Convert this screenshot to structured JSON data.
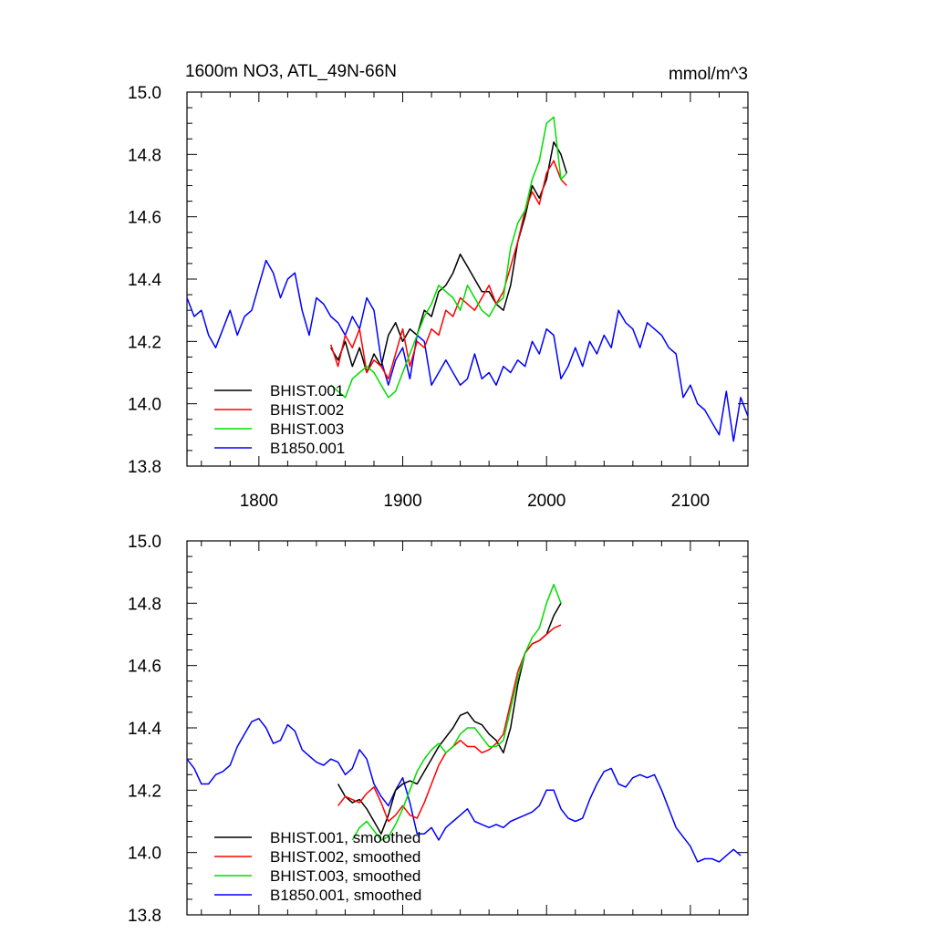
{
  "title": "1600m NO3, ATL_49N-66N",
  "units": "mmol/m^3",
  "chart_data": [
    {
      "type": "line",
      "panel": "top",
      "xlim": [
        1750,
        2140
      ],
      "ylim": [
        13.8,
        15.0
      ],
      "x_ticks": [
        1800,
        1900,
        2000,
        2100
      ],
      "y_ticks": [
        13.8,
        14.0,
        14.2,
        14.4,
        14.6,
        14.8,
        15.0
      ],
      "x_tick_labels": [
        "1800",
        "1900",
        "2000",
        "2100"
      ],
      "y_tick_labels": [
        "13.8",
        "14.0",
        "14.2",
        "14.4",
        "14.6",
        "14.8",
        "15.0"
      ],
      "grid": false,
      "legend_position": "bottom-left",
      "series": [
        {
          "name": "BHIST.001",
          "color": "#000000",
          "x": [
            1850,
            1855,
            1860,
            1865,
            1870,
            1875,
            1880,
            1885,
            1890,
            1895,
            1900,
            1905,
            1910,
            1915,
            1920,
            1925,
            1930,
            1935,
            1940,
            1945,
            1950,
            1955,
            1960,
            1965,
            1970,
            1975,
            1980,
            1985,
            1990,
            1995,
            2000,
            2005,
            2010,
            2014
          ],
          "y": [
            14.18,
            14.14,
            14.2,
            14.12,
            14.18,
            14.1,
            14.16,
            14.12,
            14.22,
            14.26,
            14.2,
            14.24,
            14.22,
            14.3,
            14.28,
            14.36,
            14.38,
            14.42,
            14.48,
            14.44,
            14.4,
            14.36,
            14.36,
            14.32,
            14.3,
            14.38,
            14.52,
            14.6,
            14.7,
            14.66,
            14.72,
            14.84,
            14.8,
            14.74
          ]
        },
        {
          "name": "BHIST.002",
          "color": "#ff0000",
          "x": [
            1850,
            1855,
            1860,
            1865,
            1870,
            1875,
            1880,
            1885,
            1890,
            1895,
            1900,
            1905,
            1910,
            1915,
            1920,
            1925,
            1930,
            1935,
            1940,
            1945,
            1950,
            1955,
            1960,
            1965,
            1970,
            1975,
            1980,
            1985,
            1990,
            1995,
            2000,
            2005,
            2010,
            2014
          ],
          "y": [
            14.19,
            14.12,
            14.22,
            14.18,
            14.24,
            14.1,
            14.14,
            14.12,
            14.08,
            14.16,
            14.24,
            14.12,
            14.2,
            14.18,
            14.24,
            14.22,
            14.3,
            14.28,
            14.34,
            14.32,
            14.3,
            14.34,
            14.38,
            14.32,
            14.36,
            14.44,
            14.52,
            14.62,
            14.68,
            14.64,
            14.74,
            14.78,
            14.72,
            14.7
          ]
        },
        {
          "name": "BHIST.003",
          "color": "#00dd00",
          "x": [
            1850,
            1855,
            1860,
            1865,
            1870,
            1875,
            1880,
            1885,
            1890,
            1895,
            1900,
            1905,
            1910,
            1915,
            1920,
            1925,
            1930,
            1935,
            1940,
            1945,
            1950,
            1955,
            1960,
            1965,
            1970,
            1975,
            1980,
            1985,
            1990,
            1995,
            2000,
            2005,
            2010,
            2014
          ],
          "y": [
            14.06,
            14.04,
            14.02,
            14.08,
            14.1,
            14.12,
            14.1,
            14.06,
            14.02,
            14.04,
            14.1,
            14.16,
            14.22,
            14.28,
            14.32,
            14.38,
            14.36,
            14.34,
            14.3,
            14.38,
            14.34,
            14.3,
            14.28,
            14.32,
            14.34,
            14.5,
            14.58,
            14.62,
            14.72,
            14.78,
            14.9,
            14.92,
            14.72,
            14.74
          ]
        },
        {
          "name": "B1850.001",
          "color": "#0000ff",
          "x": [
            1750,
            1755,
            1760,
            1765,
            1770,
            1775,
            1780,
            1785,
            1790,
            1795,
            1800,
            1805,
            1810,
            1815,
            1820,
            1825,
            1830,
            1835,
            1840,
            1845,
            1850,
            1855,
            1860,
            1865,
            1870,
            1875,
            1880,
            1885,
            1890,
            1895,
            1900,
            1905,
            1910,
            1915,
            1920,
            1925,
            1930,
            1935,
            1940,
            1945,
            1950,
            1955,
            1960,
            1965,
            1970,
            1975,
            1980,
            1985,
            1990,
            1995,
            2000,
            2005,
            2010,
            2015,
            2020,
            2025,
            2030,
            2035,
            2040,
            2045,
            2050,
            2055,
            2060,
            2065,
            2070,
            2075,
            2080,
            2085,
            2090,
            2095,
            2100,
            2105,
            2110,
            2115,
            2120,
            2125,
            2130,
            2135,
            2140
          ],
          "y": [
            14.34,
            14.28,
            14.3,
            14.22,
            14.18,
            14.24,
            14.3,
            14.22,
            14.28,
            14.3,
            14.38,
            14.46,
            14.42,
            14.34,
            14.4,
            14.42,
            14.3,
            14.22,
            14.34,
            14.32,
            14.28,
            14.26,
            14.22,
            14.28,
            14.24,
            14.34,
            14.3,
            14.14,
            14.06,
            14.14,
            14.18,
            14.08,
            14.22,
            14.2,
            14.06,
            14.1,
            14.14,
            14.1,
            14.06,
            14.08,
            14.16,
            14.08,
            14.1,
            14.06,
            14.12,
            14.1,
            14.14,
            14.12,
            14.2,
            14.16,
            14.24,
            14.22,
            14.08,
            14.12,
            14.18,
            14.12,
            14.2,
            14.16,
            14.22,
            14.18,
            14.3,
            14.26,
            14.24,
            14.18,
            14.26,
            14.24,
            14.22,
            14.18,
            14.16,
            14.02,
            14.06,
            14.0,
            13.98,
            13.94,
            13.9,
            14.04,
            13.88,
            14.02,
            13.96
          ]
        }
      ]
    },
    {
      "type": "line",
      "panel": "bottom",
      "xlim": [
        1750,
        2140
      ],
      "ylim": [
        13.8,
        15.0
      ],
      "x_ticks": [
        1800,
        1900,
        2000,
        2100
      ],
      "y_ticks": [
        13.8,
        14.0,
        14.2,
        14.4,
        14.6,
        14.8,
        15.0
      ],
      "y_tick_labels": [
        "13.8",
        "14.0",
        "14.2",
        "14.4",
        "14.6",
        "14.8",
        "15.0"
      ],
      "grid": false,
      "legend_position": "bottom-left",
      "series": [
        {
          "name": "BHIST.001, smoothed",
          "color": "#000000",
          "x": [
            1855,
            1860,
            1865,
            1870,
            1875,
            1880,
            1885,
            1890,
            1895,
            1900,
            1905,
            1910,
            1915,
            1920,
            1925,
            1930,
            1935,
            1940,
            1945,
            1950,
            1955,
            1960,
            1965,
            1970,
            1975,
            1980,
            1985,
            1990,
            1995,
            2000,
            2005,
            2010
          ],
          "y": [
            14.22,
            14.18,
            14.16,
            14.17,
            14.14,
            14.1,
            14.06,
            14.12,
            14.2,
            14.22,
            14.23,
            14.22,
            14.26,
            14.3,
            14.34,
            14.37,
            14.4,
            14.44,
            14.45,
            14.42,
            14.41,
            14.38,
            14.36,
            14.32,
            14.4,
            14.54,
            14.64,
            14.67,
            14.68,
            14.7,
            14.76,
            14.8
          ]
        },
        {
          "name": "BHIST.002, smoothed",
          "color": "#ff0000",
          "x": [
            1855,
            1860,
            1865,
            1870,
            1875,
            1880,
            1885,
            1890,
            1895,
            1900,
            1905,
            1910,
            1915,
            1920,
            1925,
            1930,
            1935,
            1940,
            1945,
            1950,
            1955,
            1960,
            1965,
            1970,
            1975,
            1980,
            1985,
            1990,
            1995,
            2000,
            2005,
            2010
          ],
          "y": [
            14.15,
            14.18,
            14.17,
            14.16,
            14.19,
            14.21,
            14.16,
            14.1,
            14.12,
            14.15,
            14.12,
            14.11,
            14.16,
            14.22,
            14.28,
            14.32,
            14.34,
            14.36,
            14.34,
            14.34,
            14.32,
            14.33,
            14.35,
            14.38,
            14.48,
            14.58,
            14.64,
            14.67,
            14.68,
            14.7,
            14.72,
            14.73
          ]
        },
        {
          "name": "BHIST.003, smoothed",
          "color": "#00dd00",
          "x": [
            1865,
            1870,
            1875,
            1880,
            1885,
            1890,
            1895,
            1900,
            1905,
            1910,
            1915,
            1920,
            1925,
            1930,
            1935,
            1940,
            1945,
            1950,
            1955,
            1960,
            1965,
            1970,
            1975,
            1980,
            1985,
            1990,
            1995,
            2000,
            2005,
            2010
          ],
          "y": [
            14.04,
            14.08,
            14.1,
            14.07,
            14.04,
            14.05,
            14.09,
            14.14,
            14.2,
            14.26,
            14.3,
            14.33,
            14.35,
            14.32,
            14.34,
            14.38,
            14.4,
            14.4,
            14.37,
            14.34,
            14.34,
            14.36,
            14.46,
            14.56,
            14.64,
            14.69,
            14.72,
            14.8,
            14.86,
            14.8
          ]
        },
        {
          "name": "B1850.001, smoothed",
          "color": "#0000ff",
          "x": [
            1750,
            1755,
            1760,
            1765,
            1770,
            1775,
            1780,
            1785,
            1790,
            1795,
            1800,
            1805,
            1810,
            1815,
            1820,
            1825,
            1830,
            1835,
            1840,
            1845,
            1850,
            1855,
            1860,
            1865,
            1870,
            1875,
            1880,
            1885,
            1890,
            1895,
            1900,
            1905,
            1910,
            1915,
            1920,
            1925,
            1930,
            1935,
            1940,
            1945,
            1950,
            1955,
            1960,
            1965,
            1970,
            1975,
            1980,
            1985,
            1990,
            1995,
            2000,
            2005,
            2010,
            2015,
            2020,
            2025,
            2030,
            2035,
            2040,
            2045,
            2050,
            2055,
            2060,
            2065,
            2070,
            2075,
            2080,
            2085,
            2090,
            2095,
            2100,
            2105,
            2110,
            2115,
            2120,
            2125,
            2130,
            2135
          ],
          "y": [
            14.3,
            14.27,
            14.22,
            14.22,
            14.25,
            14.26,
            14.28,
            14.34,
            14.38,
            14.42,
            14.43,
            14.4,
            14.35,
            14.36,
            14.41,
            14.39,
            14.33,
            14.31,
            14.29,
            14.28,
            14.3,
            14.29,
            14.25,
            14.27,
            14.33,
            14.3,
            14.22,
            14.18,
            14.15,
            14.2,
            14.24,
            14.16,
            14.06,
            14.06,
            14.08,
            14.04,
            14.08,
            14.1,
            14.12,
            14.14,
            14.1,
            14.09,
            14.08,
            14.09,
            14.08,
            14.1,
            14.11,
            14.12,
            14.13,
            14.15,
            14.2,
            14.2,
            14.14,
            14.11,
            14.1,
            14.11,
            14.17,
            14.22,
            14.26,
            14.27,
            14.22,
            14.21,
            14.24,
            14.25,
            14.24,
            14.25,
            14.2,
            14.14,
            14.08,
            14.05,
            14.02,
            13.97,
            13.98,
            13.98,
            13.97,
            13.99,
            14.01,
            13.99
          ]
        }
      ]
    }
  ]
}
